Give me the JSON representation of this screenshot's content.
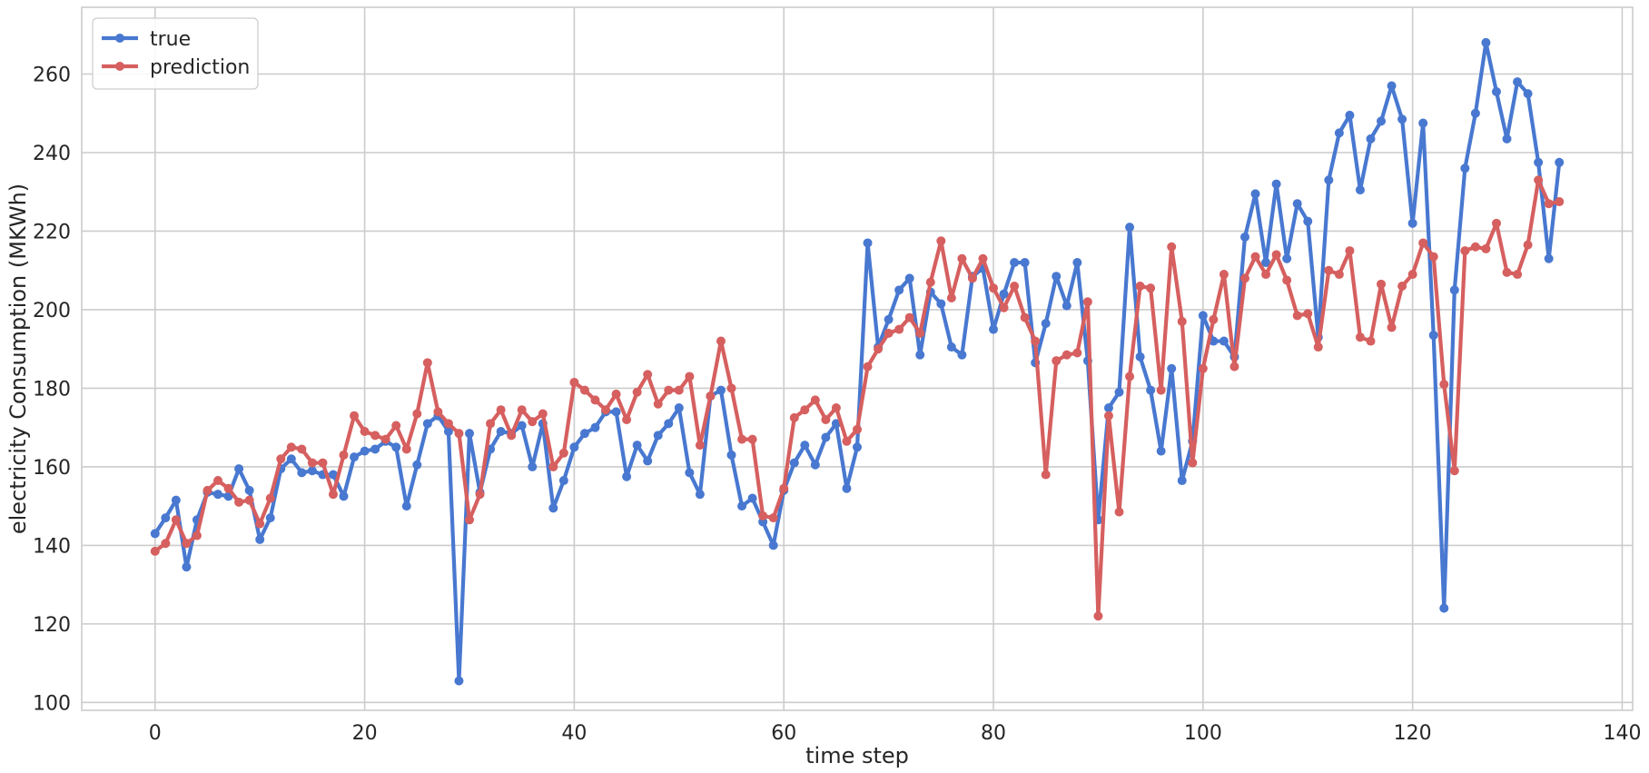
{
  "chart_data": {
    "type": "line",
    "title": "",
    "xlabel": "time step",
    "ylabel": "electricity Consumption (MKWh)",
    "xlim": [
      -7,
      141
    ],
    "ylim": [
      98,
      277
    ],
    "xticks": [
      0,
      20,
      40,
      60,
      80,
      100,
      120,
      140
    ],
    "yticks": [
      100,
      120,
      140,
      160,
      180,
      200,
      220,
      240,
      260
    ],
    "grid": true,
    "legend_position": "top-left",
    "markers": true,
    "series": [
      {
        "name": "true",
        "color": "#4878d0",
        "values": [
          143,
          147,
          151.5,
          134.5,
          146.5,
          153.5,
          153,
          152.5,
          159.5,
          154,
          141.5,
          147,
          159.5,
          162,
          158.5,
          159,
          158,
          158,
          152.5,
          162.5,
          164,
          164.5,
          166.5,
          165,
          150,
          160.5,
          171,
          173,
          169,
          105.5,
          168.5,
          153.5,
          164.5,
          169,
          168.5,
          170.5,
          160,
          171,
          149.5,
          156.5,
          165,
          168.5,
          170,
          174,
          174,
          157.5,
          165.5,
          161.5,
          168,
          171,
          175,
          158.5,
          153,
          178,
          179.5,
          163,
          150,
          152,
          146,
          140,
          154,
          161,
          165.5,
          160.5,
          167.5,
          171,
          154.5,
          165,
          217,
          190.5,
          197.5,
          205,
          208,
          188.5,
          204.5,
          201.5,
          190.5,
          188.5,
          208.5,
          210.5,
          195,
          204,
          212,
          212,
          186.5,
          196.5,
          208.5,
          201,
          212,
          187,
          146.5,
          175,
          179,
          221,
          188,
          179.5,
          164,
          185,
          156.5,
          166.5,
          198.5,
          192,
          192,
          188,
          218.5,
          229.5,
          212,
          232,
          213,
          227,
          222.5,
          193,
          233,
          245,
          249.5,
          230.5,
          243.5,
          248,
          257,
          248.5,
          222,
          247.5,
          193.5,
          124,
          205,
          236,
          250,
          268,
          255.5,
          243.5,
          258,
          255,
          237.5,
          213,
          237.5
        ]
      },
      {
        "name": "prediction",
        "color": "#d65f5f",
        "values": [
          138.5,
          140.5,
          146.5,
          140.5,
          142.5,
          154,
          156.5,
          154.5,
          151,
          151.5,
          145.5,
          152,
          162,
          165,
          164.5,
          161,
          161,
          153,
          163,
          173,
          169,
          168,
          167,
          170.5,
          164.5,
          173.5,
          186.5,
          174,
          171,
          168.5,
          146.5,
          153,
          171,
          174.5,
          168,
          174.5,
          171.5,
          173.5,
          160,
          163.5,
          181.5,
          179.5,
          177,
          174.5,
          178.5,
          172,
          179,
          183.5,
          176,
          179.5,
          179.5,
          183,
          165.5,
          178,
          192,
          180,
          167,
          167,
          147.5,
          147,
          154.5,
          172.5,
          174.5,
          177,
          172,
          175,
          166.5,
          169.5,
          185.5,
          190,
          194,
          195,
          198,
          194,
          207,
          217.5,
          203,
          213,
          208,
          213,
          205.5,
          200.5,
          206,
          198,
          192,
          158,
          187,
          188.5,
          189,
          202,
          122,
          173,
          148.5,
          183,
          206,
          205.5,
          179.5,
          216,
          197,
          161,
          185,
          197.5,
          209,
          185.5,
          208,
          213.5,
          209,
          214,
          207.5,
          198.5,
          199,
          190.5,
          210,
          209,
          215,
          193,
          192,
          206.5,
          195.5,
          206,
          209,
          217,
          213.5,
          181,
          159,
          215,
          216,
          215.5,
          222,
          209.5,
          209,
          216.5,
          233,
          227,
          227.5
        ]
      }
    ]
  }
}
